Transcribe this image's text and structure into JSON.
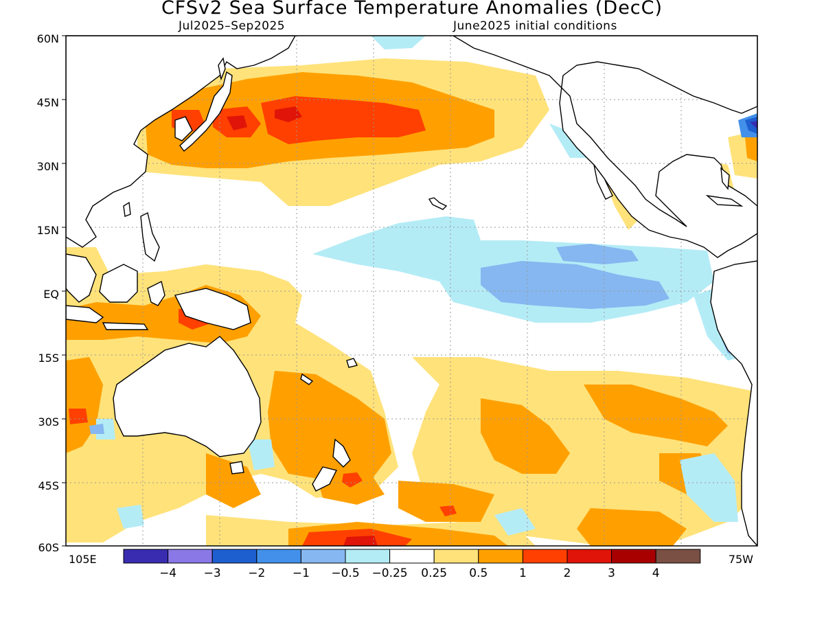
{
  "header": {
    "title": "CFSv2 Sea Surface Temperature Anomalies (DecC)",
    "period": "Jul2025–Sep2025",
    "init": "June2025 initial conditions"
  },
  "axes": {
    "lat_labels": [
      "60N",
      "45N",
      "30N",
      "15N",
      "EQ",
      "15S",
      "30S",
      "45S",
      "60S"
    ],
    "lon_left": "105E",
    "lon_right": "75W"
  },
  "colorbar": {
    "colors": [
      "#3a2cb0",
      "#8a78e6",
      "#1e5fd0",
      "#4290ea",
      "#86b7f0",
      "#b4ecf6",
      "#ffffff",
      "#ffe27a",
      "#ffa000",
      "#ff4000",
      "#e01408",
      "#a80000",
      "#7a5044"
    ],
    "labels": [
      "-4",
      "-3",
      "-2",
      "-1",
      "-0.5",
      "-0.25",
      "0.25",
      "0.5",
      "1",
      "2",
      "3",
      "4"
    ]
  },
  "colors": {
    "land_outline": "#000000",
    "grid": "#999999",
    "cool_light": "#b4ecf6",
    "cool_mid": "#86b7f0",
    "warm_light": "#ffe27a",
    "warm_mid": "#ffa000",
    "warm_strong": "#ff4000",
    "warm_deep": "#e01408"
  }
}
